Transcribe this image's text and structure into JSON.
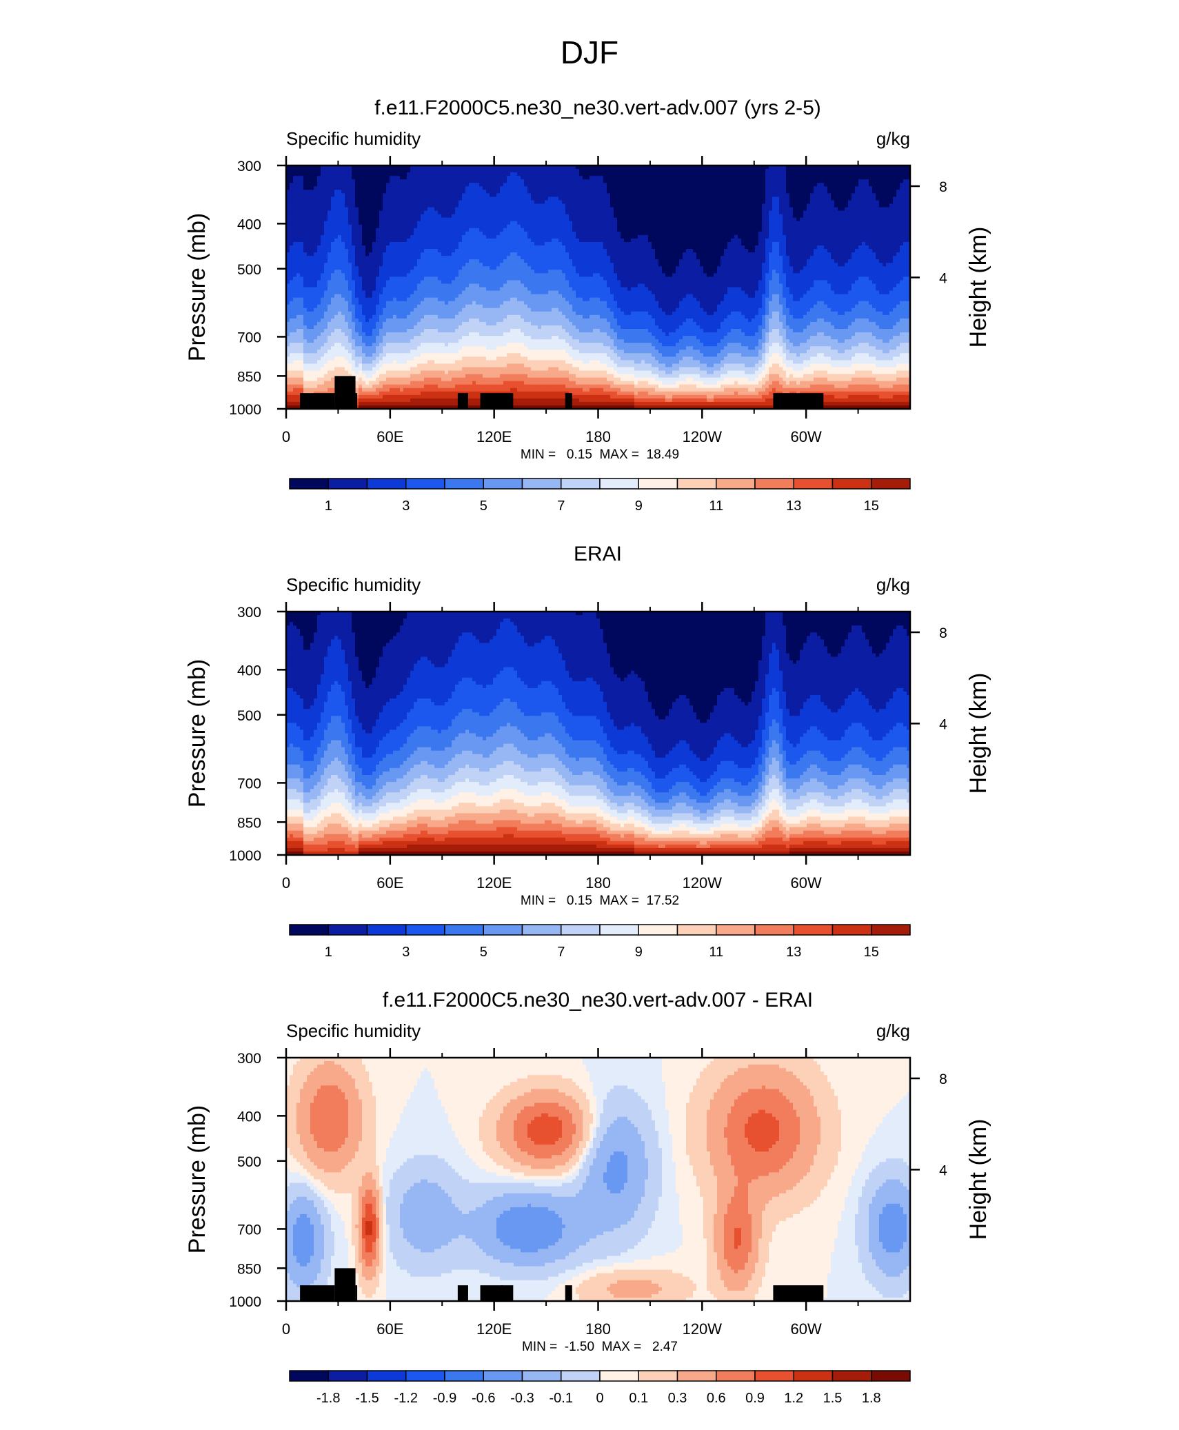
{
  "figure": {
    "main_title": "DJF"
  },
  "colors": {
    "abs": [
      "#00085e",
      "#0a1da3",
      "#0d3ad6",
      "#1c58ee",
      "#3b78f0",
      "#6898f2",
      "#97b7f4",
      "#c0d3f6",
      "#e2ecfa",
      "#fff1e6",
      "#fdd0b8",
      "#f8a98a",
      "#f27d5c",
      "#e8512f",
      "#cd3113",
      "#a51c08",
      "#7a0b02"
    ],
    "diff": [
      "#00085e",
      "#0a1da3",
      "#0d3ad6",
      "#1c58ee",
      "#3b78f0",
      "#6898f2",
      "#97b7f4",
      "#c0d3f6",
      "#e2ecfa",
      "#fff1e6",
      "#fdd0b8",
      "#f8a98a",
      "#f27d5c",
      "#e8512f",
      "#cd3113",
      "#a51c08",
      "#7a0b02"
    ],
    "terrain": "#000000"
  },
  "chart_data": [
    {
      "type": "heatmap",
      "title": "f.e11.F2000C5.ne30_ne30.vert-adv.007 (yrs 2-5)",
      "left_string": "Specific humidity",
      "right_string": "g/kg",
      "ylabel": "Pressure (mb)",
      "y2label": "Height (km)",
      "x_ticks": [
        "0",
        "60E",
        "120E",
        "180",
        "120W",
        "60W"
      ],
      "y_ticks": [
        "300",
        "400",
        "500",
        "700",
        "850",
        "1000"
      ],
      "y2_ticks": [
        "8",
        "4"
      ],
      "stats": "MIN =   0.15  MAX =  18.49",
      "min": 0.15,
      "max": 18.49,
      "colorbar_labels": [
        "1",
        "3",
        "5",
        "7",
        "9",
        "11",
        "13",
        "15"
      ],
      "xlim": [
        0,
        360
      ],
      "ylim": [
        1000,
        300
      ],
      "y_scale": "log",
      "palette": "abs",
      "terrain": true
    },
    {
      "type": "heatmap",
      "title": "ERAI",
      "left_string": "Specific humidity",
      "right_string": "g/kg",
      "ylabel": "Pressure (mb)",
      "y2label": "Height (km)",
      "x_ticks": [
        "0",
        "60E",
        "120E",
        "180",
        "120W",
        "60W"
      ],
      "y_ticks": [
        "300",
        "400",
        "500",
        "700",
        "850",
        "1000"
      ],
      "y2_ticks": [
        "8",
        "4"
      ],
      "stats": "MIN =   0.15  MAX =  17.52",
      "min": 0.15,
      "max": 17.52,
      "colorbar_labels": [
        "1",
        "3",
        "5",
        "7",
        "9",
        "11",
        "13",
        "15"
      ],
      "xlim": [
        0,
        360
      ],
      "ylim": [
        1000,
        300
      ],
      "y_scale": "log",
      "palette": "abs",
      "terrain": false
    },
    {
      "type": "heatmap",
      "title": "f.e11.F2000C5.ne30_ne30.vert-adv.007 - ERAI",
      "left_string": "Specific humidity",
      "right_string": "g/kg",
      "ylabel": "Pressure (mb)",
      "y2label": "Height (km)",
      "x_ticks": [
        "0",
        "60E",
        "120E",
        "180",
        "120W",
        "60W"
      ],
      "y_ticks": [
        "300",
        "400",
        "500",
        "700",
        "850",
        "1000"
      ],
      "y2_ticks": [
        "8",
        "4"
      ],
      "stats": "MIN =  -1.50  MAX =   2.47",
      "min": -1.5,
      "max": 2.47,
      "colorbar_labels": [
        "-1.8",
        "-1.5",
        "-1.2",
        "-0.9",
        "-0.6",
        "-0.3",
        "-0.1",
        "0",
        "0.1",
        "0.3",
        "0.6",
        "0.9",
        "1.2",
        "1.5",
        "1.8"
      ],
      "xlim": [
        0,
        360
      ],
      "ylim": [
        1000,
        300
      ],
      "y_scale": "log",
      "palette": "diff",
      "terrain": true
    }
  ]
}
